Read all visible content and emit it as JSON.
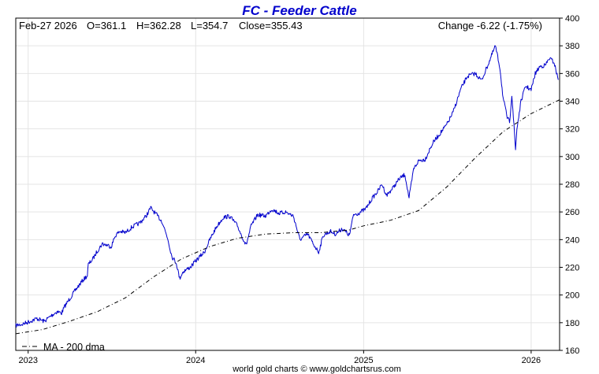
{
  "chart_data": {
    "type": "line",
    "title": "FC  -  Feeder Cattle",
    "header": {
      "date": "Feb-27  2026",
      "open": "O=361.1",
      "high": "H=362.28",
      "low": "L=354.7",
      "close": "Close=355.43",
      "change": "Change -6.22 (-1.75%)"
    },
    "ylim": [
      160,
      400
    ],
    "yticks": [
      "160",
      "180",
      "200",
      "220",
      "240",
      "260",
      "280",
      "300",
      "320",
      "340",
      "360",
      "380",
      "400"
    ],
    "x_range": [
      "2022-12-05",
      "2026-03-04"
    ],
    "xticks": [
      {
        "label": "2023",
        "date": "2023-01-01"
      },
      {
        "label": "2024",
        "date": "2024-01-01"
      },
      {
        "label": "2025",
        "date": "2025-01-01"
      },
      {
        "label": "2026",
        "date": "2026-01-01"
      }
    ],
    "grid": true,
    "legend": "MA - 200 dma",
    "legend_position": "bottom-left",
    "series": [
      {
        "style": "solid",
        "color": "#0000cc",
        "points": [
          [
            "2022-12-05",
            178
          ],
          [
            "2022-12-20",
            179
          ],
          [
            "2023-01-05",
            181
          ],
          [
            "2023-01-20",
            183
          ],
          [
            "2023-02-05",
            181
          ],
          [
            "2023-02-20",
            185
          ],
          [
            "2023-03-05",
            188
          ],
          [
            "2023-03-15",
            187
          ],
          [
            "2023-03-22",
            192
          ],
          [
            "2023-04-01",
            197
          ],
          [
            "2023-04-15",
            204
          ],
          [
            "2023-05-01",
            211
          ],
          [
            "2023-05-10",
            214
          ],
          [
            "2023-05-12",
            222
          ],
          [
            "2023-05-22",
            226
          ],
          [
            "2023-06-01",
            232
          ],
          [
            "2023-06-12",
            237
          ],
          [
            "2023-06-22",
            236
          ],
          [
            "2023-07-01",
            235
          ],
          [
            "2023-07-10",
            243
          ],
          [
            "2023-07-20",
            246
          ],
          [
            "2023-08-01",
            245
          ],
          [
            "2023-08-15",
            249
          ],
          [
            "2023-09-01",
            252
          ],
          [
            "2023-09-15",
            257
          ],
          [
            "2023-09-25",
            263
          ],
          [
            "2023-10-05",
            259
          ],
          [
            "2023-10-20",
            253
          ],
          [
            "2023-11-01",
            241
          ],
          [
            "2023-11-10",
            228
          ],
          [
            "2023-11-20",
            223
          ],
          [
            "2023-11-27",
            212
          ],
          [
            "2023-12-05",
            217
          ],
          [
            "2023-12-20",
            220
          ],
          [
            "2024-01-05",
            226
          ],
          [
            "2024-01-20",
            231
          ],
          [
            "2024-02-01",
            240
          ],
          [
            "2024-02-15",
            249
          ],
          [
            "2024-03-01",
            256
          ],
          [
            "2024-03-15",
            257
          ],
          [
            "2024-04-01",
            250
          ],
          [
            "2024-04-10",
            243
          ],
          [
            "2024-04-20",
            236
          ],
          [
            "2024-05-01",
            250
          ],
          [
            "2024-05-15",
            258
          ],
          [
            "2024-06-01",
            257
          ],
          [
            "2024-06-15",
            262
          ],
          [
            "2024-07-01",
            259
          ],
          [
            "2024-07-15",
            260
          ],
          [
            "2024-08-01",
            257
          ],
          [
            "2024-08-15",
            240
          ],
          [
            "2024-09-01",
            244
          ],
          [
            "2024-09-15",
            236
          ],
          [
            "2024-09-25",
            231
          ],
          [
            "2024-10-05",
            243
          ],
          [
            "2024-10-20",
            246
          ],
          [
            "2024-11-01",
            244
          ],
          [
            "2024-11-15",
            248
          ],
          [
            "2024-12-01",
            243
          ],
          [
            "2024-12-10",
            258
          ],
          [
            "2024-12-20",
            259
          ],
          [
            "2025-01-05",
            262
          ],
          [
            "2025-01-20",
            270
          ],
          [
            "2025-02-01",
            275
          ],
          [
            "2025-02-10",
            280
          ],
          [
            "2025-02-20",
            272
          ],
          [
            "2025-03-05",
            277
          ],
          [
            "2025-03-20",
            284
          ],
          [
            "2025-04-01",
            287
          ],
          [
            "2025-04-10",
            270
          ],
          [
            "2025-04-20",
            291
          ],
          [
            "2025-05-01",
            297
          ],
          [
            "2025-05-15",
            298
          ],
          [
            "2025-06-01",
            310
          ],
          [
            "2025-06-15",
            316
          ],
          [
            "2025-07-01",
            323
          ],
          [
            "2025-07-15",
            332
          ],
          [
            "2025-08-01",
            349
          ],
          [
            "2025-08-15",
            358
          ],
          [
            "2025-09-01",
            360
          ],
          [
            "2025-09-15",
            355
          ],
          [
            "2025-10-01",
            368
          ],
          [
            "2025-10-15",
            380
          ],
          [
            "2025-10-25",
            364
          ],
          [
            "2025-11-01",
            342
          ],
          [
            "2025-11-10",
            328
          ],
          [
            "2025-11-15",
            325
          ],
          [
            "2025-11-20",
            345
          ],
          [
            "2025-11-28",
            305
          ],
          [
            "2025-12-01",
            320
          ],
          [
            "2025-12-10",
            340
          ],
          [
            "2025-12-20",
            351
          ],
          [
            "2026-01-01",
            348
          ],
          [
            "2026-01-10",
            360
          ],
          [
            "2026-01-20",
            365
          ],
          [
            "2026-02-01",
            366
          ],
          [
            "2026-02-10",
            371
          ],
          [
            "2026-02-20",
            368
          ],
          [
            "2026-03-01",
            355.43
          ]
        ]
      },
      {
        "name": "MA - 200 dma",
        "style": "dashdot",
        "color": "#000000",
        "points": [
          [
            "2022-12-05",
            172
          ],
          [
            "2023-02-01",
            175
          ],
          [
            "2023-04-01",
            181
          ],
          [
            "2023-06-01",
            188
          ],
          [
            "2023-08-01",
            198
          ],
          [
            "2023-10-01",
            213
          ],
          [
            "2023-12-01",
            226
          ],
          [
            "2024-02-01",
            235
          ],
          [
            "2024-04-01",
            241
          ],
          [
            "2024-06-01",
            244
          ],
          [
            "2024-08-01",
            245
          ],
          [
            "2024-10-01",
            245
          ],
          [
            "2024-12-01",
            247
          ],
          [
            "2025-01-01",
            250
          ],
          [
            "2025-03-01",
            254
          ],
          [
            "2025-05-01",
            261
          ],
          [
            "2025-07-01",
            278
          ],
          [
            "2025-09-01",
            299
          ],
          [
            "2025-11-01",
            318
          ],
          [
            "2026-01-01",
            331
          ],
          [
            "2026-03-04",
            341
          ]
        ]
      }
    ]
  },
  "footer": "world gold charts © www.goldchartsrus.com",
  "colors": {
    "price": "#0000cc",
    "ma": "#000000",
    "grid": "#e4e4e4",
    "frame": "#000000"
  }
}
